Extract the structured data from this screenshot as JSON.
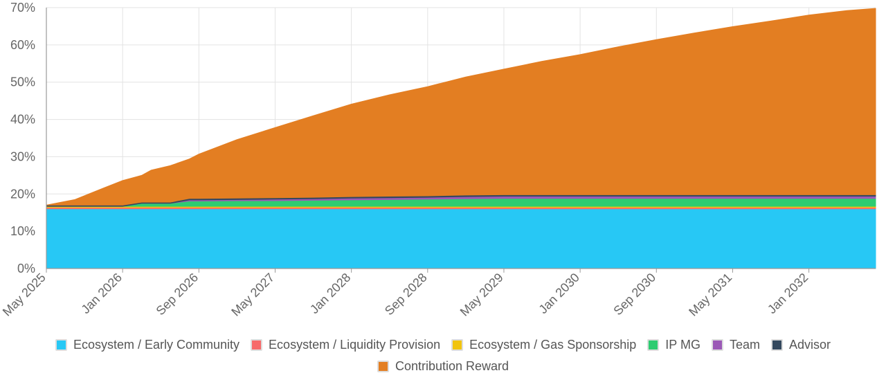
{
  "chart_data": {
    "type": "area",
    "stacked": true,
    "x_axis": {
      "ticks": [
        "May 2025",
        "Jan 2026",
        "Sep 2026",
        "May 2027",
        "Jan 2028",
        "Sep 2028",
        "May 2029",
        "Jan 2030",
        "Sep 2030",
        "May 2031",
        "Jan 2032"
      ],
      "start": "2025-05",
      "end": "2032-08"
    },
    "y_axis": {
      "ticks": [
        "0%",
        "10%",
        "20%",
        "30%",
        "40%",
        "50%",
        "60%",
        "70%"
      ],
      "ylim": [
        0,
        70
      ],
      "unit": "%"
    },
    "grid": true,
    "legend_position": "bottom",
    "x": [
      "2025-05",
      "2025-08",
      "2025-11",
      "2026-01",
      "2026-03",
      "2026-04",
      "2026-06",
      "2026-08",
      "2026-09",
      "2027-01",
      "2027-05",
      "2027-09",
      "2028-01",
      "2028-05",
      "2028-09",
      "2029-01",
      "2029-05",
      "2029-09",
      "2030-01",
      "2030-05",
      "2030-09",
      "2031-01",
      "2031-05",
      "2031-09",
      "2032-01",
      "2032-05",
      "2032-08"
    ],
    "series": [
      {
        "name": "Ecosystem / Early Community",
        "color": "#27C8F5",
        "values": [
          16,
          16,
          16,
          16,
          16,
          16,
          16,
          16,
          16,
          16,
          16,
          16,
          16,
          16,
          16,
          16,
          16,
          16,
          16,
          16,
          16,
          16,
          16,
          16,
          16,
          16,
          16
        ]
      },
      {
        "name": "Ecosystem / Liquidity Provision",
        "color": "#F76A6A",
        "values": [
          0.4,
          0.4,
          0.4,
          0.4,
          0.4,
          0.4,
          0.4,
          0.4,
          0.4,
          0.4,
          0.4,
          0.4,
          0.4,
          0.4,
          0.4,
          0.4,
          0.4,
          0.4,
          0.4,
          0.4,
          0.4,
          0.4,
          0.4,
          0.4,
          0.4,
          0.4,
          0.4
        ]
      },
      {
        "name": "Ecosystem / Gas Sponsorship",
        "color": "#F1C40F",
        "values": [
          0.3,
          0.3,
          0.3,
          0.3,
          0.3,
          0.3,
          0.3,
          0.3,
          0.3,
          0.3,
          0.3,
          0.3,
          0.3,
          0.3,
          0.3,
          0.3,
          0.3,
          0.3,
          0.3,
          0.3,
          0.3,
          0.3,
          0.3,
          0.3,
          0.3,
          0.3,
          0.3
        ]
      },
      {
        "name": "IP MG",
        "color": "#2ECC71",
        "values": [
          0,
          0,
          0,
          0,
          0.8,
          0.8,
          0.8,
          1.4,
          1.4,
          1.5,
          1.5,
          1.6,
          1.7,
          1.8,
          1.9,
          2.0,
          2.1,
          2.1,
          2.1,
          2.1,
          2.1,
          2.1,
          2.1,
          2.1,
          2.1,
          2.1,
          2.1
        ]
      },
      {
        "name": "Team",
        "color": "#9B59B6",
        "values": [
          0,
          0,
          0,
          0,
          0,
          0,
          0,
          0.3,
          0.3,
          0.3,
          0.4,
          0.4,
          0.5,
          0.5,
          0.5,
          0.6,
          0.6,
          0.6,
          0.6,
          0.6,
          0.6,
          0.6,
          0.6,
          0.6,
          0.6,
          0.6,
          0.6
        ]
      },
      {
        "name": "Advisor",
        "color": "#34495E",
        "values": [
          0.3,
          0.3,
          0.3,
          0.3,
          0.3,
          0.3,
          0.3,
          0.4,
          0.4,
          0.4,
          0.4,
          0.4,
          0.4,
          0.4,
          0.4,
          0.4,
          0.4,
          0.4,
          0.4,
          0.4,
          0.4,
          0.4,
          0.4,
          0.4,
          0.4,
          0.4,
          0.4
        ]
      },
      {
        "name": "Contribution Reward",
        "color": "#E37E22",
        "values": [
          0,
          1.5,
          4.6,
          6.6,
          7.2,
          8.6,
          9.8,
          10.6,
          11.9,
          15.7,
          18.8,
          21.9,
          24.8,
          27.2,
          29.3,
          31.7,
          33.7,
          35.8,
          37.6,
          39.7,
          41.6,
          43.4,
          45.1,
          46.6,
          48.2,
          49.4,
          50.0
        ]
      }
    ]
  }
}
